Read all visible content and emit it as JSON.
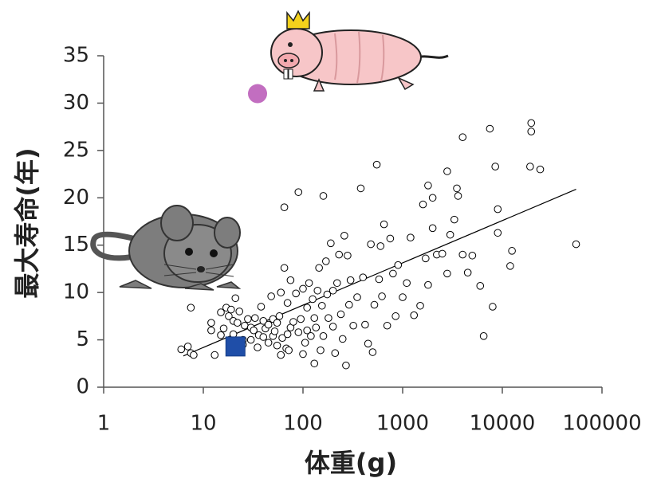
{
  "chart_data": {
    "type": "scatter",
    "x_label": "体重(g)",
    "y_label": "最大寿命(年)",
    "xscale": "log",
    "xlim": [
      1,
      100000
    ],
    "xticks": [
      1,
      10,
      100,
      1000,
      10000,
      100000
    ],
    "ylim": [
      0,
      35
    ],
    "yticks": [
      0,
      5,
      10,
      15,
      20,
      25,
      30,
      35
    ],
    "grid": false,
    "series": [
      {
        "color": "#ffffff",
        "marker": "circle",
        "x": [
          6,
          7,
          7.5,
          8,
          7.5,
          12,
          12,
          13,
          15,
          15,
          16,
          17,
          18,
          19,
          20,
          21,
          20,
          22,
          23,
          25,
          25,
          26,
          28,
          30,
          30,
          32,
          33,
          35,
          36,
          38,
          40,
          40,
          42,
          45,
          45,
          48,
          50,
          50,
          52,
          55,
          55,
          58,
          60,
          60,
          62,
          65,
          65,
          68,
          70,
          70,
          72,
          75,
          75,
          80,
          85,
          90,
          90,
          95,
          100,
          100,
          105,
          110,
          110,
          115,
          120,
          125,
          130,
          130,
          135,
          140,
          145,
          150,
          155,
          160,
          160,
          170,
          175,
          180,
          190,
          200,
          200,
          210,
          220,
          230,
          240,
          250,
          260,
          270,
          280,
          290,
          300,
          320,
          350,
          380,
          400,
          420,
          450,
          480,
          500,
          520,
          550,
          580,
          600,
          620,
          650,
          700,
          750,
          800,
          850,
          900,
          1000,
          1100,
          1200,
          1300,
          1500,
          1600,
          1700,
          1800,
          1800,
          2000,
          2000,
          2200,
          2500,
          2800,
          2800,
          3000,
          3300,
          3500,
          3600,
          4000,
          4000,
          4500,
          5000,
          6000,
          6500,
          7500,
          8000,
          8500,
          9000,
          9000,
          12000,
          12500,
          19000,
          19500,
          19500,
          24000,
          55000
        ],
        "values": [
          4,
          4.3,
          3.6,
          3.4,
          8.4,
          6.8,
          6,
          3.4,
          7.9,
          5.5,
          6.2,
          8.4,
          7.5,
          8.2,
          5.6,
          9.4,
          7,
          6.8,
          8,
          5,
          4.5,
          6.5,
          7.2,
          5,
          6.3,
          6,
          7.3,
          4.2,
          5.5,
          8.5,
          5.3,
          7,
          6.2,
          4.7,
          6.6,
          9.6,
          7.2,
          5.4,
          5.9,
          4.4,
          6.8,
          7.5,
          3.4,
          10,
          5.2,
          12.6,
          19,
          4.1,
          8.9,
          5.6,
          3.9,
          11.3,
          6.3,
          6.9,
          9.9,
          20.6,
          5.8,
          7.2,
          3.5,
          10.4,
          4.7,
          8.4,
          6,
          11,
          5.4,
          9.3,
          7.3,
          2.5,
          6.3,
          10.2,
          12.6,
          3.9,
          8.6,
          20.2,
          5.4,
          13.3,
          9.8,
          7.3,
          15.2,
          6.4,
          10.2,
          3.6,
          11,
          14,
          7.7,
          5.1,
          16,
          2.3,
          13.9,
          8.7,
          11.3,
          6.5,
          9.5,
          21,
          11.6,
          6.6,
          4.6,
          15.1,
          3.7,
          8.7,
          23.5,
          11.4,
          14.9,
          9.6,
          17.2,
          6.5,
          15.7,
          12,
          7.5,
          12.9,
          9.5,
          11,
          15.8,
          7.6,
          8.6,
          19.3,
          13.6,
          21.3,
          10.8,
          20,
          16.8,
          14,
          14.1,
          22.8,
          12,
          16.1,
          17.7,
          21,
          20.2,
          26.4,
          14,
          12.1,
          13.9,
          10.7,
          5.4,
          27.3,
          8.5,
          23.3,
          18.8,
          16.3,
          12.8,
          14.4,
          23.3,
          27.9,
          27,
          23,
          15.1
        ]
      },
      {
        "color": "#000000",
        "marker": "line",
        "x": [
          6.3,
          55000
        ],
        "values": [
          3.3,
          20.9
        ]
      },
      {
        "color": "#c26ec0",
        "marker": "circle-filled",
        "x": [
          35
        ],
        "values": [
          31
        ]
      },
      {
        "color": "#1f4ea8",
        "marker": "square",
        "x": [
          21
        ],
        "values": [
          4.3
        ]
      }
    ]
  }
}
